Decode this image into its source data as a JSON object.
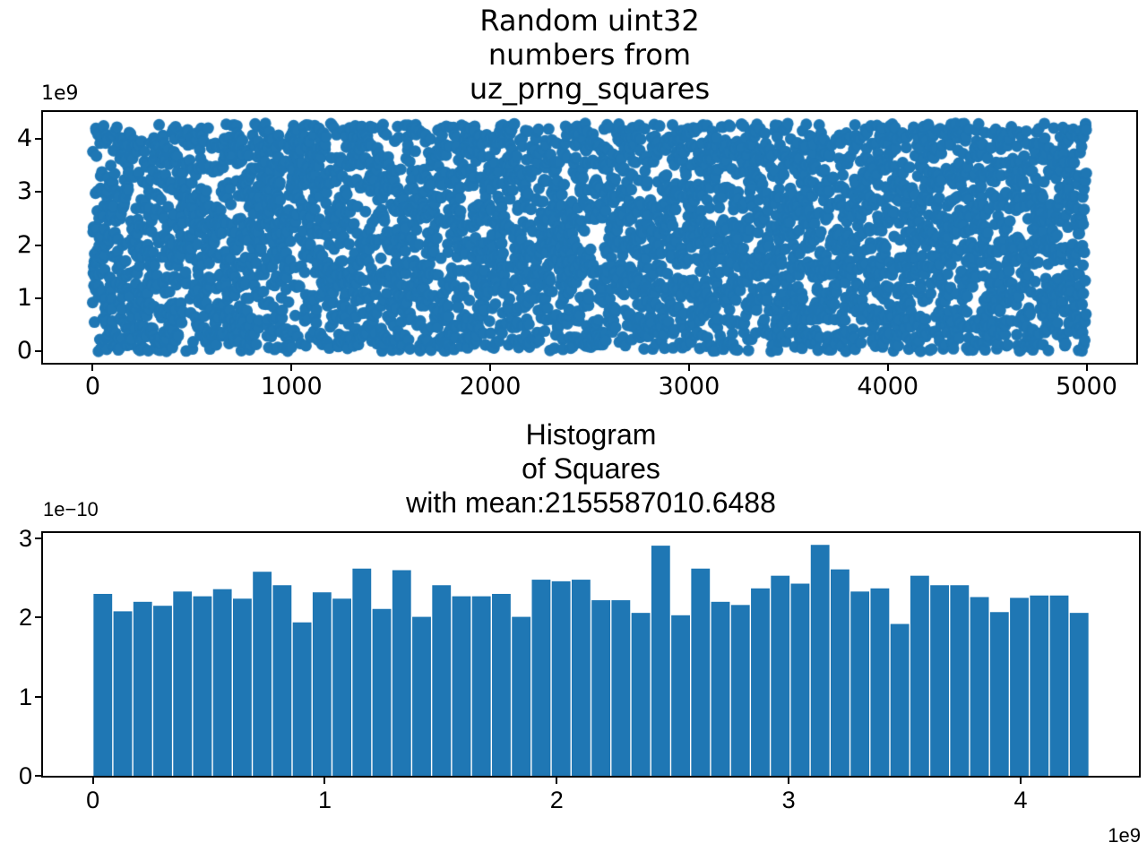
{
  "figure": {
    "background": "#ffffff",
    "accent_color": "#1f77b4",
    "text_color": "#000000"
  },
  "chart_data": [
    {
      "type": "scatter",
      "title": "Random uint32\nnumbers from\nuz_prng_squares",
      "n_points": 5000,
      "x_meaning": "sample index",
      "y_meaning": "uint32 value from uz_prng_squares",
      "x_data_range": [
        0,
        4999
      ],
      "y_data_range": [
        0,
        4294967295
      ],
      "xlim": [
        -250,
        5250
      ],
      "ylim": [
        -215000000,
        4510000000
      ],
      "x_ticks": [
        0,
        1000,
        2000,
        3000,
        4000,
        5000
      ],
      "y_ticks_1e9": [
        0,
        1,
        2,
        3,
        4
      ],
      "y_offset_label": "1e9",
      "marker_color": "#1f77b4",
      "marker_radius_px": 6.5,
      "grid": false,
      "legend": "none"
    },
    {
      "type": "histogram",
      "title": "Histogram\nof Squares\nwith mean:2155587010.6488",
      "mean": 2155587010.6488,
      "density": true,
      "n_bins": 50,
      "bin_start": 0,
      "bin_end": 4295000000,
      "bin_width": 85900000,
      "densities_1e10": [
        2.3,
        2.08,
        2.2,
        2.15,
        2.33,
        2.27,
        2.36,
        2.24,
        2.58,
        2.41,
        1.94,
        2.32,
        2.24,
        2.62,
        2.11,
        2.6,
        2.01,
        2.41,
        2.27,
        2.27,
        2.3,
        2.01,
        2.48,
        2.46,
        2.48,
        2.22,
        2.22,
        2.06,
        2.91,
        2.03,
        2.62,
        2.2,
        2.16,
        2.37,
        2.53,
        2.43,
        2.92,
        2.61,
        2.33,
        2.37,
        1.92,
        2.53,
        2.41,
        2.41,
        2.26,
        2.07,
        2.25,
        2.28,
        2.28,
        2.06
      ],
      "xlim_1e9": [
        -0.215,
        4.51
      ],
      "ylim_1e10": [
        0,
        3.07
      ],
      "x_ticks_1e9": [
        0,
        1,
        2,
        3,
        4
      ],
      "y_ticks_1e10": [
        0,
        1,
        2,
        3
      ],
      "x_offset_label": "1e9",
      "y_offset_label": "1e−10",
      "bar_color": "#1f77b4",
      "bar_gap_color": "#ffffff",
      "grid": false,
      "legend": "none"
    }
  ]
}
